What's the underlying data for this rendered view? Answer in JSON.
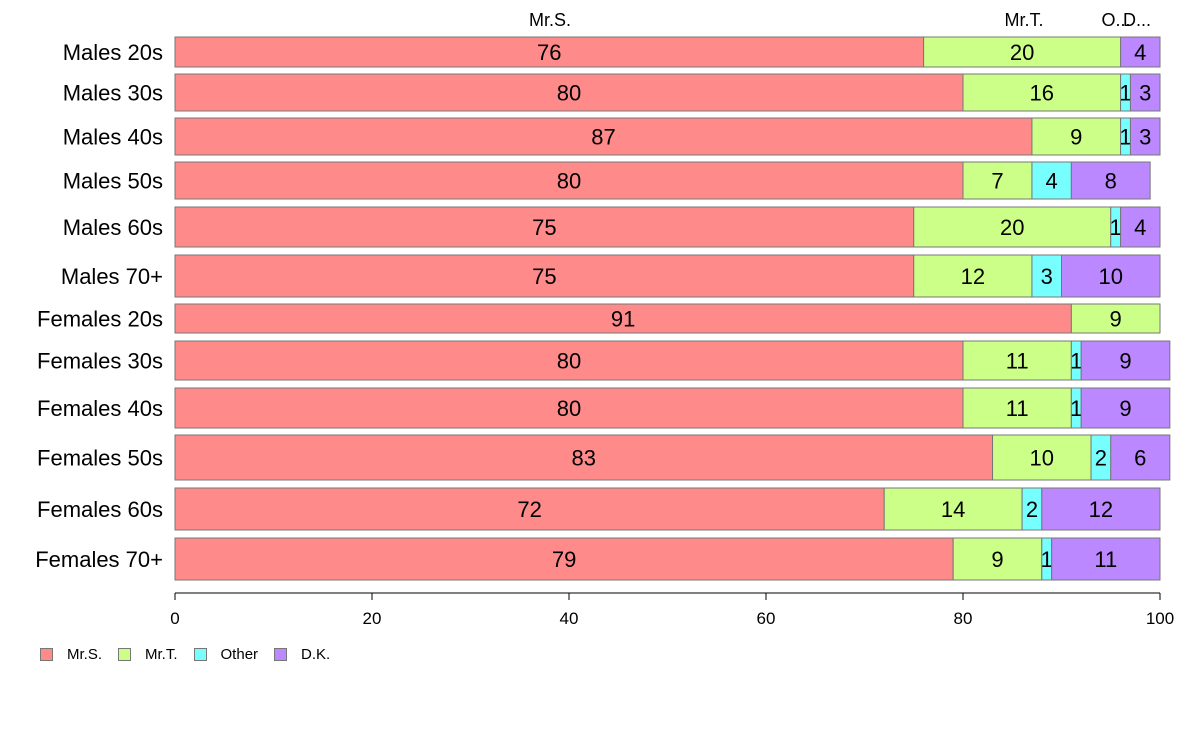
{
  "chart_data": {
    "type": "bar",
    "orientation": "horizontal",
    "stacked": true,
    "categories": [
      "Males 20s",
      "Males 30s",
      "Males 40s",
      "Males 50s",
      "Males 60s",
      "Males 70+",
      "Females 20s",
      "Females 30s",
      "Females 40s",
      "Females 50s",
      "Females 60s",
      "Females 70+"
    ],
    "series": [
      {
        "name": "Mr.S.",
        "color": "#ff8a8a",
        "top_label": "Mr.S.",
        "values": [
          76,
          80,
          87,
          80,
          75,
          75,
          91,
          80,
          80,
          83,
          72,
          79
        ]
      },
      {
        "name": "Mr.T.",
        "color": "#ccff88",
        "top_label": "Mr.T.",
        "values": [
          20,
          16,
          9,
          7,
          20,
          12,
          9,
          11,
          11,
          10,
          14,
          9
        ]
      },
      {
        "name": "Other",
        "color": "#77ffff",
        "top_label": "O...",
        "values": [
          0,
          1,
          1,
          4,
          1,
          3,
          0,
          1,
          1,
          2,
          2,
          1
        ]
      },
      {
        "name": "D.K.",
        "color": "#bb88ff",
        "top_label": "D...",
        "values": [
          4,
          3,
          3,
          8,
          4,
          10,
          0,
          9,
          9,
          6,
          12,
          11
        ]
      }
    ],
    "xlim": [
      0,
      100
    ],
    "xticks": [
      0,
      20,
      40,
      60,
      80,
      100
    ],
    "grid": false,
    "legend_position": "bottom-left"
  }
}
